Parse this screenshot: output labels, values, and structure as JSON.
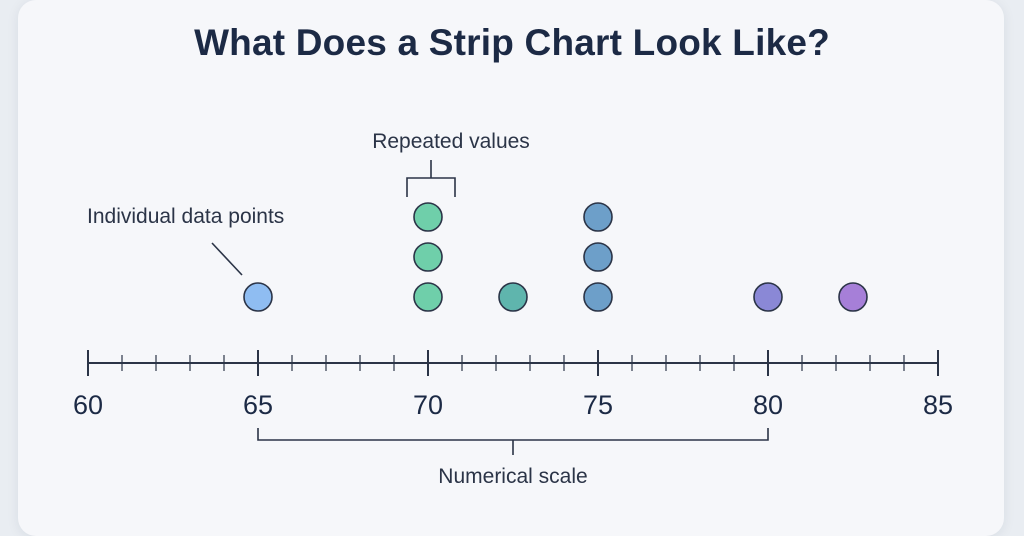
{
  "title": "What Does a Strip Chart Look Like?",
  "annotations": {
    "individual_points": "Individual data points",
    "repeated_values": "Repeated values",
    "numerical_scale": "Numerical scale"
  },
  "chart_data": {
    "type": "scatter",
    "title": "What Does a Strip Chart Look Like?",
    "xlim": [
      60,
      85
    ],
    "x_ticks": [
      60,
      65,
      70,
      75,
      80,
      85
    ],
    "x_tick_labels": [
      "60",
      "65",
      "70",
      "75",
      "80",
      "85"
    ],
    "minor_tick_step": 1,
    "points": [
      {
        "x": 65,
        "stack": 0,
        "color": "#8fbdf2"
      },
      {
        "x": 70,
        "stack": 0,
        "color": "#6fcfaa"
      },
      {
        "x": 70,
        "stack": 1,
        "color": "#6fcfaa"
      },
      {
        "x": 70,
        "stack": 2,
        "color": "#6fcfaa"
      },
      {
        "x": 72.5,
        "stack": 0,
        "color": "#5fb5ad"
      },
      {
        "x": 75,
        "stack": 0,
        "color": "#6d9fc9"
      },
      {
        "x": 75,
        "stack": 1,
        "color": "#6d9fc9"
      },
      {
        "x": 75,
        "stack": 2,
        "color": "#6d9fc9"
      },
      {
        "x": 80,
        "stack": 0,
        "color": "#8a88d6"
      },
      {
        "x": 82.5,
        "stack": 0,
        "color": "#a67fd8"
      }
    ],
    "grid": false,
    "legend": "none"
  }
}
